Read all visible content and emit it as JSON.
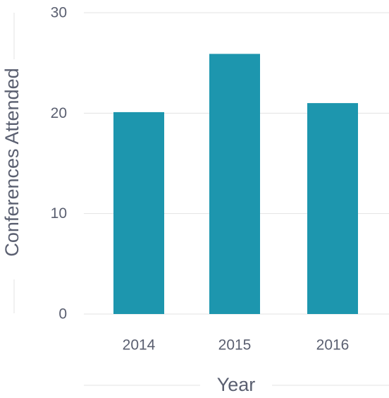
{
  "chart_data": {
    "type": "bar",
    "title": "",
    "xlabel": "Year",
    "ylabel": "Conferences Attended",
    "categories": [
      "2014",
      "2015",
      "2016"
    ],
    "values": [
      20.1,
      25.9,
      21
    ],
    "ylim": [
      0,
      30
    ],
    "yticks": [
      "0",
      "10",
      "20",
      "30"
    ],
    "grid": true,
    "legend": "none",
    "bar_color": "#1d96ae"
  }
}
